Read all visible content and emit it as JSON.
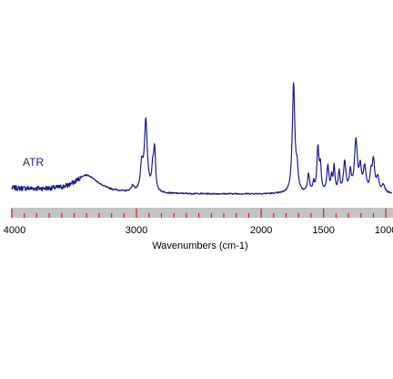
{
  "chart_data": {
    "type": "line",
    "title": "",
    "xlabel": "Wavenumbers (cm-1)",
    "ylabel": "",
    "x_reversed": true,
    "xlim": [
      4000,
      950
    ],
    "ylim": [
      0,
      1
    ],
    "grid": false,
    "x_ticks": [
      4000,
      3000,
      2000,
      1500,
      1000
    ],
    "minor_tick_step": 100,
    "series": [
      {
        "name": "ATR",
        "color": "#1c1c8c",
        "peaks": [
          {
            "x": 3400,
            "y": 0.15,
            "w": 110
          },
          {
            "x": 3030,
            "y": 0.05,
            "w": 15
          },
          {
            "x": 2958,
            "y": 0.23,
            "w": 12
          },
          {
            "x": 2925,
            "y": 0.64,
            "w": 14
          },
          {
            "x": 2870,
            "y": 0.19,
            "w": 10
          },
          {
            "x": 2855,
            "y": 0.36,
            "w": 9
          },
          {
            "x": 1740,
            "y": 0.99,
            "w": 12
          },
          {
            "x": 1712,
            "y": 0.18,
            "w": 10
          },
          {
            "x": 1620,
            "y": 0.16,
            "w": 10
          },
          {
            "x": 1580,
            "y": 0.08,
            "w": 8
          },
          {
            "x": 1545,
            "y": 0.4,
            "w": 10
          },
          {
            "x": 1525,
            "y": 0.22,
            "w": 8
          },
          {
            "x": 1465,
            "y": 0.24,
            "w": 10
          },
          {
            "x": 1435,
            "y": 0.12,
            "w": 7
          },
          {
            "x": 1415,
            "y": 0.23,
            "w": 8
          },
          {
            "x": 1375,
            "y": 0.18,
            "w": 8
          },
          {
            "x": 1330,
            "y": 0.27,
            "w": 12
          },
          {
            "x": 1285,
            "y": 0.17,
            "w": 10
          },
          {
            "x": 1240,
            "y": 0.46,
            "w": 14
          },
          {
            "x": 1205,
            "y": 0.2,
            "w": 10
          },
          {
            "x": 1170,
            "y": 0.22,
            "w": 14
          },
          {
            "x": 1120,
            "y": 0.14,
            "w": 9
          },
          {
            "x": 1100,
            "y": 0.28,
            "w": 12
          },
          {
            "x": 1065,
            "y": 0.13,
            "w": 12
          },
          {
            "x": 1020,
            "y": 0.07,
            "w": 15
          }
        ]
      }
    ]
  }
}
